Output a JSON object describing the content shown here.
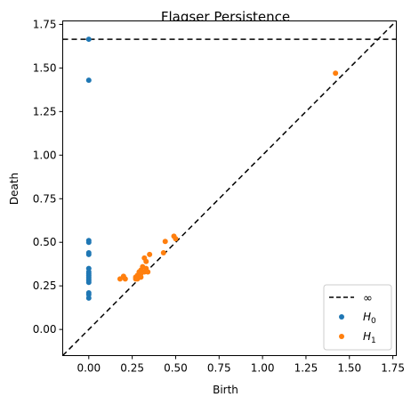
{
  "chart_data": {
    "type": "scatter",
    "title": "Flagser Persistence",
    "xlabel": "Birth",
    "ylabel": "Death",
    "xlim": [
      -0.15,
      1.77
    ],
    "ylim": [
      -0.15,
      1.77
    ],
    "xticks": [
      0.0,
      0.25,
      0.5,
      0.75,
      1.0,
      1.25,
      1.5,
      1.75
    ],
    "yticks": [
      0.0,
      0.25,
      0.5,
      0.75,
      1.0,
      1.25,
      1.5,
      1.75
    ],
    "xtick_labels": [
      "0.00",
      "0.25",
      "0.50",
      "0.75",
      "1.00",
      "1.25",
      "1.50",
      "1.75"
    ],
    "ytick_labels": [
      "0.00",
      "0.25",
      "0.50",
      "0.75",
      "1.00",
      "1.25",
      "1.50",
      "1.75"
    ],
    "infinity_level": 1.665,
    "grid": false,
    "legend_position": "bottom-right",
    "legend": {
      "infinity_label": "∞",
      "h0_label": "H",
      "h0_sub": "0",
      "h1_label": "H",
      "h1_sub": "1"
    },
    "series": [
      {
        "name": "H0",
        "color": "#1f77b4",
        "points": [
          [
            0,
            1.665
          ],
          [
            0,
            1.43
          ],
          [
            0,
            0.51
          ],
          [
            0,
            0.5
          ],
          [
            0,
            0.44
          ],
          [
            0,
            0.43
          ],
          [
            0,
            0.35
          ],
          [
            0,
            0.33
          ],
          [
            0,
            0.32
          ],
          [
            0,
            0.31
          ],
          [
            0,
            0.3
          ],
          [
            0,
            0.29
          ],
          [
            0,
            0.28
          ],
          [
            0,
            0.27
          ],
          [
            0,
            0.21
          ],
          [
            0,
            0.2
          ],
          [
            0,
            0.18
          ]
        ]
      },
      {
        "name": "H1",
        "color": "#ff7f0e",
        "points": [
          [
            1.42,
            1.47
          ],
          [
            0.49,
            0.535
          ],
          [
            0.5,
            0.52
          ],
          [
            0.44,
            0.505
          ],
          [
            0.43,
            0.44
          ],
          [
            0.35,
            0.43
          ],
          [
            0.32,
            0.41
          ],
          [
            0.33,
            0.39
          ],
          [
            0.31,
            0.36
          ],
          [
            0.33,
            0.35
          ],
          [
            0.3,
            0.34
          ],
          [
            0.29,
            0.33
          ],
          [
            0.32,
            0.33
          ],
          [
            0.34,
            0.33
          ],
          [
            0.3,
            0.32
          ],
          [
            0.28,
            0.31
          ],
          [
            0.27,
            0.3
          ],
          [
            0.29,
            0.3
          ],
          [
            0.3,
            0.3
          ],
          [
            0.27,
            0.29
          ],
          [
            0.28,
            0.29
          ],
          [
            0.2,
            0.305
          ],
          [
            0.18,
            0.29
          ],
          [
            0.21,
            0.29
          ]
        ]
      }
    ],
    "line_color": "#000000"
  }
}
